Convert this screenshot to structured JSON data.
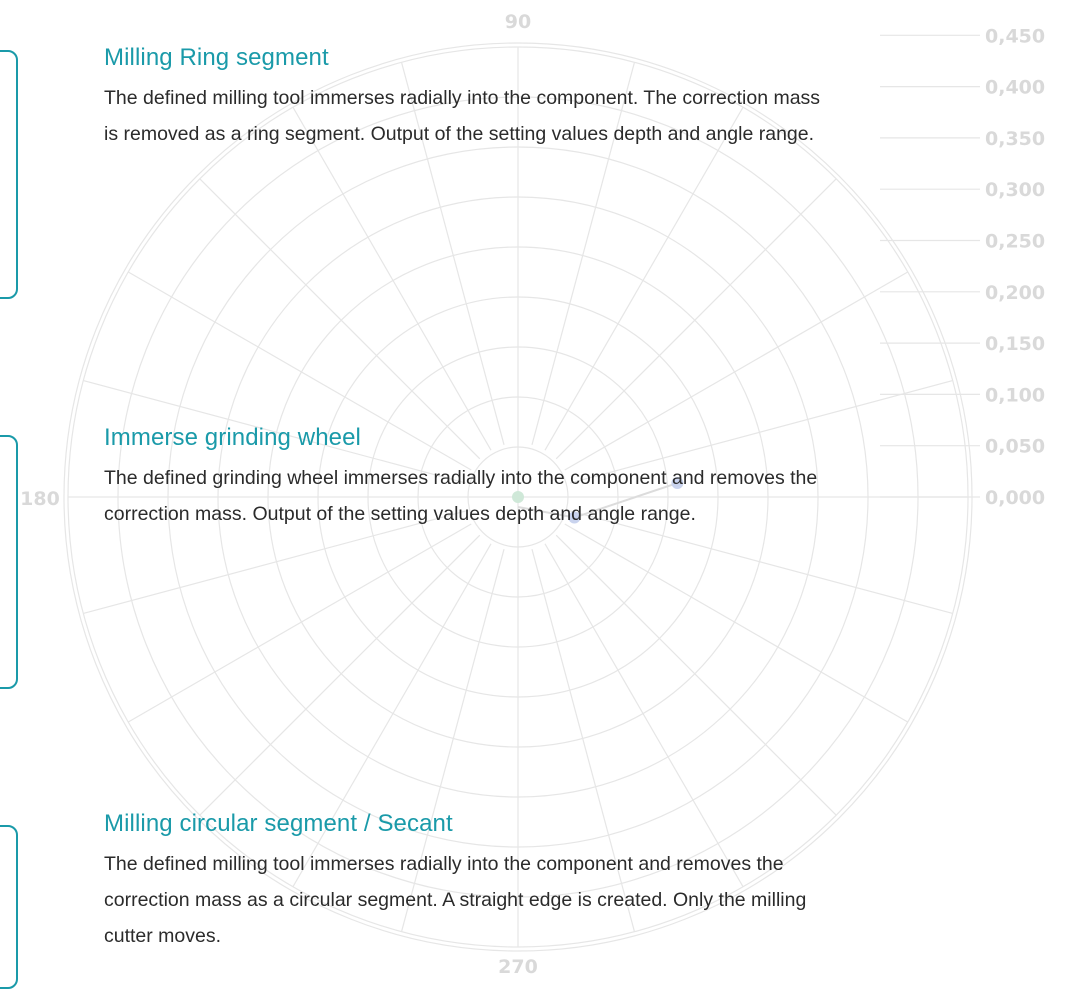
{
  "chart_data": {
    "type": "scatter",
    "title": "",
    "angular_labels": [
      "90",
      "180",
      "270"
    ],
    "radial_ticks": [
      "0,000",
      "0,050",
      "0,100",
      "0,150",
      "0,200",
      "0,250",
      "0,300",
      "0,350",
      "0,400",
      "0,450"
    ],
    "radial_range": [
      0,
      0.45
    ],
    "angular_grid_step_deg": 15,
    "series": [
      {
        "color": "#cfe8d8",
        "points": [
          {
            "angle": 180,
            "r": 0.0
          }
        ]
      },
      {
        "color": "#c9d3ee",
        "points": [
          {
            "angle": 340,
            "r": 0.06
          },
          {
            "angle": 5,
            "r": 0.16
          }
        ]
      }
    ]
  },
  "sections": [
    {
      "title": "Milling Ring segment",
      "lines": [
        "The defined milling tool immerses radially into the component. The correction mass",
        "is removed as a ring segment. Output of the setting values depth and angle range."
      ]
    },
    {
      "title": "Immerse grinding wheel",
      "lines": [
        "The defined grinding wheel immerses radially into the component and removes the",
        "correction mass. Output of the setting values depth and angle range."
      ]
    },
    {
      "title": "Milling circular segment / Secant",
      "lines": [
        "The defined milling tool immerses radially into the component and removes the",
        "correction mass as a circular segment. A straight edge is created. Only the milling",
        "cutter moves."
      ]
    }
  ],
  "colors": {
    "accent": "#1a9aa9",
    "grid": "#e6e6e6",
    "text": "#2b2b2b"
  }
}
